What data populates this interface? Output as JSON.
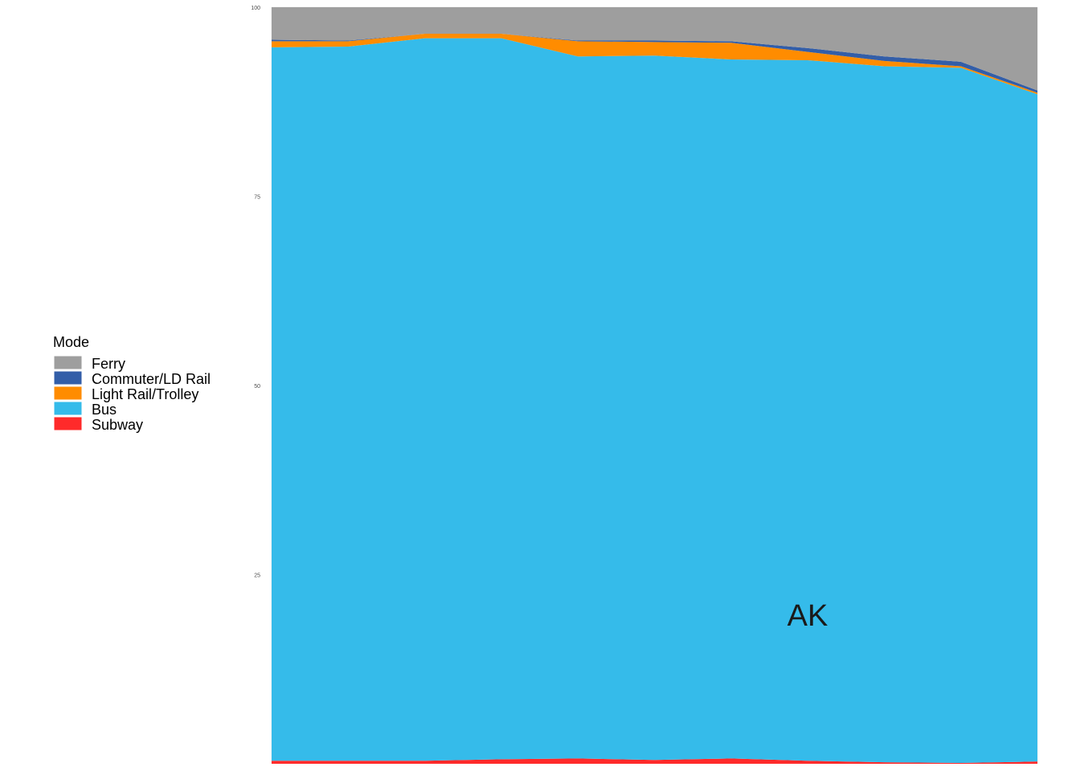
{
  "chart_data": {
    "type": "area",
    "stacked": true,
    "percent_stacked": true,
    "x": [
      1,
      2,
      3,
      4,
      5,
      6,
      7,
      8,
      9,
      10,
      11
    ],
    "ylim": [
      0,
      100
    ],
    "yticks": [
      25,
      50,
      75,
      100
    ],
    "ytick_labels": [
      "25",
      "50",
      "75",
      "100"
    ],
    "grid": true,
    "legend": {
      "title": "Mode",
      "placement": "left",
      "entries": [
        {
          "name": "Ferry",
          "color": "#9e9e9e"
        },
        {
          "name": "Commuter/LD Rail",
          "color": "#335ea8"
        },
        {
          "name": "Light Rail/Trolley",
          "color": "#ff8c00"
        },
        {
          "name": "Bus",
          "color": "#35bbea"
        },
        {
          "name": "Subway",
          "color": "#ff2a2a"
        }
      ]
    },
    "annotation": "AK",
    "series": [
      {
        "name": "Subway",
        "color": "#ff2a2a",
        "values": [
          0.4,
          0.4,
          0.4,
          0.6,
          0.7,
          0.5,
          0.7,
          0.4,
          0.2,
          0.1,
          0.3
        ]
      },
      {
        "name": "Bus",
        "color": "#35bbea",
        "values": [
          94.3,
          94.4,
          95.5,
          95.3,
          92.8,
          93.1,
          92.4,
          92.6,
          92.0,
          91.9,
          88.2
        ]
      },
      {
        "name": "Light Rail/Trolley",
        "color": "#ff8c00",
        "values": [
          0.8,
          0.7,
          0.6,
          0.6,
          2.0,
          1.8,
          2.2,
          1.1,
          0.7,
          0.2,
          0.2
        ]
      },
      {
        "name": "Commuter/LD Rail",
        "color": "#335ea8",
        "values": [
          0.2,
          0.1,
          0.0,
          0.0,
          0.1,
          0.2,
          0.2,
          0.5,
          0.6,
          0.6,
          0.3
        ]
      },
      {
        "name": "Ferry",
        "color": "#9e9e9e",
        "values": [
          4.3,
          4.4,
          3.5,
          3.5,
          4.4,
          4.4,
          4.5,
          5.4,
          6.5,
          7.2,
          11.0
        ]
      }
    ]
  }
}
